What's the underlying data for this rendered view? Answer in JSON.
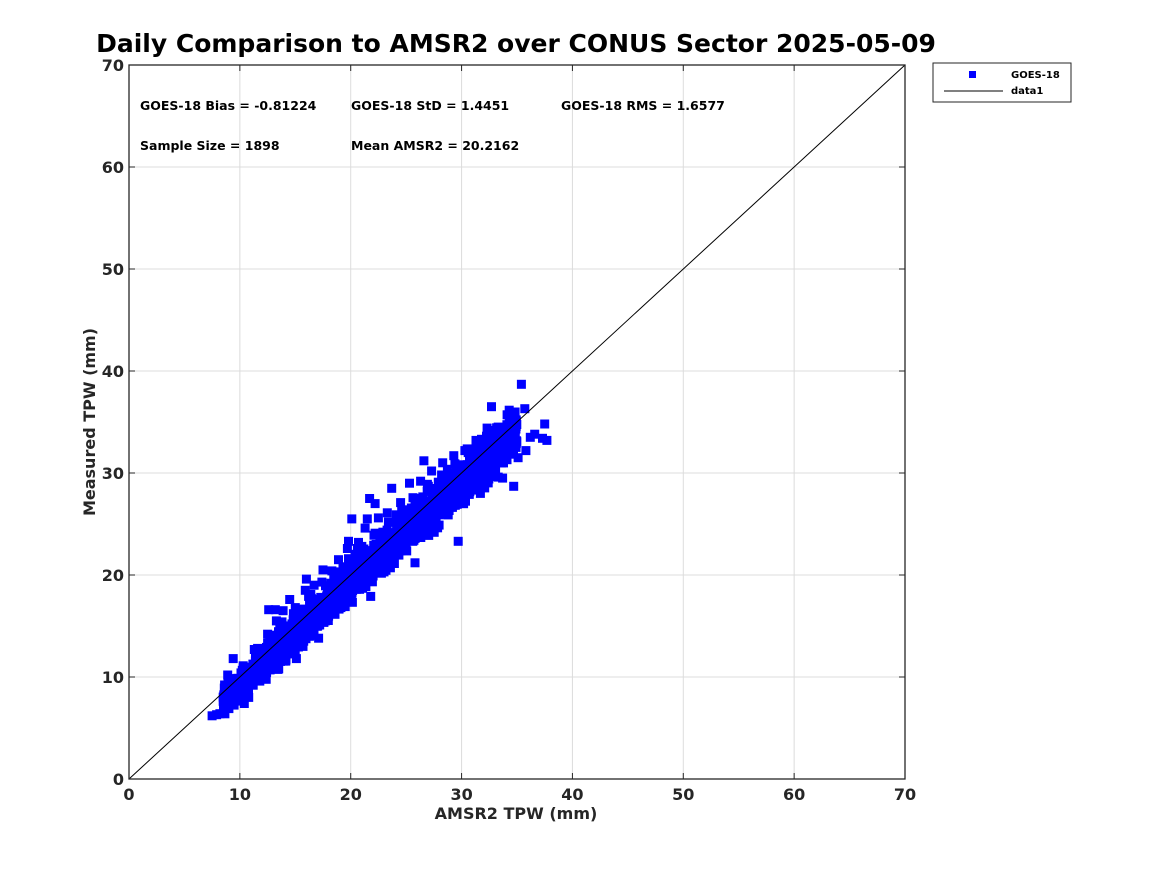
{
  "chart_data": {
    "type": "scatter",
    "title": "Daily Comparison to AMSR2 over CONUS Sector 2025-05-09",
    "xlabel": "AMSR2 TPW (mm)",
    "ylabel": "Measured TPW (mm)",
    "xlim": [
      0,
      70
    ],
    "ylim": [
      0,
      70
    ],
    "xticks": [
      "0",
      "10",
      "20",
      "30",
      "40",
      "50",
      "60",
      "70"
    ],
    "yticks": [
      "0",
      "10",
      "20",
      "30",
      "40",
      "50",
      "60",
      "70"
    ],
    "grid": true,
    "legend_position": "outside-top-right",
    "stats": {
      "bias": "GOES-18 Bias = -0.81224",
      "std": "GOES-18 StD = 1.4451",
      "rms": "GOES-18 RMS = 1.6577",
      "sample_size": "Sample Size = 1898",
      "mean": "Mean AMSR2 = 20.2162"
    },
    "series": [
      {
        "name": "GOES-18",
        "kind": "scatter",
        "color": "#0000ff",
        "marker": "square",
        "n_points": 1898,
        "points": [
          [
            7.5,
            6.2
          ],
          [
            7.9,
            6.3
          ],
          [
            8.2,
            6.4
          ],
          [
            8.6,
            6.7
          ],
          [
            8.9,
            7.2
          ],
          [
            9.2,
            7.6
          ],
          [
            8.9,
            10.2
          ],
          [
            9.0,
            9.8
          ],
          [
            9.4,
            11.8
          ],
          [
            9.6,
            8.3
          ],
          [
            9.8,
            7.9
          ],
          [
            10.0,
            8.6
          ],
          [
            10.2,
            9.1
          ],
          [
            10.4,
            7.4
          ],
          [
            10.6,
            9.9
          ],
          [
            10.8,
            8.0
          ],
          [
            10.3,
            11.1
          ],
          [
            10.9,
            10.4
          ],
          [
            11.2,
            9.2
          ],
          [
            11.4,
            10.8
          ],
          [
            11.6,
            12.8
          ],
          [
            11.8,
            9.6
          ],
          [
            12.0,
            11.5
          ],
          [
            12.2,
            10.1
          ],
          [
            12.3,
            12.4
          ],
          [
            12.5,
            13.3
          ],
          [
            12.7,
            11.0
          ],
          [
            12.9,
            14.1
          ],
          [
            12.6,
            16.6
          ],
          [
            13.1,
            12.3
          ],
          [
            13.3,
            15.5
          ],
          [
            13.5,
            10.8
          ],
          [
            13.7,
            13.6
          ],
          [
            13.9,
            16.5
          ],
          [
            14.1,
            12.5
          ],
          [
            14.3,
            14.5
          ],
          [
            14.5,
            17.6
          ],
          [
            14.7,
            13.2
          ],
          [
            14.9,
            15.6
          ],
          [
            15.1,
            11.8
          ],
          [
            15.3,
            14.2
          ],
          [
            15.5,
            16.5
          ],
          [
            15.7,
            13.0
          ],
          [
            15.9,
            18.5
          ],
          [
            16.1,
            15.2
          ],
          [
            16.3,
            17.1
          ],
          [
            16.5,
            14.1
          ],
          [
            16.7,
            19.0
          ],
          [
            16.9,
            16.3
          ],
          [
            17.1,
            13.8
          ],
          [
            17.3,
            17.8
          ],
          [
            17.5,
            20.5
          ],
          [
            17.7,
            15.5
          ],
          [
            17.9,
            18.6
          ],
          [
            18.1,
            16.8
          ],
          [
            18.3,
            20.4
          ],
          [
            18.5,
            17.6
          ],
          [
            18.7,
            19.4
          ],
          [
            18.9,
            21.5
          ],
          [
            19.1,
            18.2
          ],
          [
            19.3,
            20.8
          ],
          [
            19.5,
            16.9
          ],
          [
            19.7,
            22.6
          ],
          [
            19.9,
            19.5
          ],
          [
            20.1,
            25.5
          ],
          [
            20.3,
            21.2
          ],
          [
            20.5,
            18.6
          ],
          [
            20.7,
            23.2
          ],
          [
            20.9,
            20.0
          ],
          [
            21.1,
            22.1
          ],
          [
            21.3,
            24.6
          ],
          [
            21.5,
            19.8
          ],
          [
            21.7,
            27.5
          ],
          [
            21.9,
            21.8
          ],
          [
            22.1,
            23.9
          ],
          [
            22.3,
            20.6
          ],
          [
            22.5,
            25.6
          ],
          [
            22.7,
            22.5
          ],
          [
            22.9,
            24.2
          ],
          [
            23.1,
            21.0
          ],
          [
            23.3,
            26.1
          ],
          [
            23.5,
            23.5
          ],
          [
            23.7,
            28.5
          ],
          [
            23.9,
            22.0
          ],
          [
            24.1,
            25.9
          ],
          [
            24.3,
            24.2
          ],
          [
            24.5,
            27.1
          ],
          [
            24.7,
            22.9
          ],
          [
            24.9,
            26.1
          ],
          [
            25.1,
            24.8
          ],
          [
            25.3,
            29.0
          ],
          [
            25.5,
            25.6
          ],
          [
            25.7,
            23.4
          ],
          [
            25.9,
            27.5
          ],
          [
            26.1,
            25.0
          ],
          [
            26.3,
            29.2
          ],
          [
            26.5,
            26.6
          ],
          [
            26.7,
            24.0
          ],
          [
            26.9,
            28.2
          ],
          [
            27.1,
            25.9
          ],
          [
            27.3,
            30.2
          ],
          [
            27.5,
            27.0
          ],
          [
            27.7,
            25.2
          ],
          [
            27.9,
            29.1
          ],
          [
            28.1,
            26.5
          ],
          [
            28.3,
            31.0
          ],
          [
            28.5,
            28.0
          ],
          [
            28.7,
            26.2
          ],
          [
            28.9,
            30.0
          ],
          [
            29.1,
            27.6
          ],
          [
            29.3,
            31.7
          ],
          [
            29.5,
            28.9
          ],
          [
            29.7,
            23.3
          ],
          [
            29.9,
            30.6
          ],
          [
            30.1,
            28.6
          ],
          [
            30.3,
            32.2
          ],
          [
            30.5,
            29.6
          ],
          [
            30.7,
            27.9
          ],
          [
            30.9,
            31.4
          ],
          [
            31.1,
            30.0
          ],
          [
            31.3,
            33.2
          ],
          [
            31.5,
            30.9
          ],
          [
            31.7,
            28.0
          ],
          [
            31.9,
            32.6
          ],
          [
            32.1,
            30.5
          ],
          [
            32.3,
            34.4
          ],
          [
            32.5,
            31.6
          ],
          [
            32.7,
            36.5
          ],
          [
            32.9,
            33.1
          ],
          [
            33.1,
            31.0
          ],
          [
            33.3,
            34.5
          ],
          [
            33.5,
            32.3
          ],
          [
            33.7,
            29.5
          ],
          [
            33.9,
            33.8
          ],
          [
            34.1,
            31.3
          ],
          [
            34.3,
            35.0
          ],
          [
            34.5,
            32.8
          ],
          [
            34.7,
            28.7
          ],
          [
            34.9,
            34.3
          ],
          [
            35.1,
            31.5
          ],
          [
            35.4,
            38.7
          ],
          [
            35.7,
            36.3
          ],
          [
            36.2,
            33.5
          ],
          [
            36.6,
            33.8
          ],
          [
            37.3,
            33.4
          ],
          [
            37.7,
            33.2
          ],
          [
            37.5,
            34.8
          ],
          [
            35.8,
            32.2
          ],
          [
            13.2,
            16.6
          ],
          [
            16.4,
            18.1
          ],
          [
            16.0,
            19.6
          ],
          [
            19.8,
            23.3
          ],
          [
            21.5,
            25.5
          ],
          [
            22.2,
            27.0
          ],
          [
            26.6,
            31.2
          ],
          [
            28.8,
            29.2
          ],
          [
            27.4,
            24.6
          ],
          [
            25.8,
            21.2
          ],
          [
            24.4,
            22.8
          ],
          [
            23.0,
            20.3
          ],
          [
            22.3,
            23.0
          ],
          [
            21.8,
            17.9
          ],
          [
            20.6,
            22.6
          ],
          [
            19.4,
            19.9
          ],
          [
            18.2,
            19.2
          ],
          [
            17.0,
            16.9
          ],
          [
            15.6,
            15.8
          ],
          [
            14.4,
            15.0
          ],
          [
            13.6,
            14.7
          ],
          [
            12.4,
            12.9
          ],
          [
            11.5,
            11.8
          ],
          [
            10.7,
            10.9
          ],
          [
            10.1,
            10.4
          ],
          [
            9.5,
            9.7
          ],
          [
            12.8,
            13.0
          ],
          [
            14.0,
            14.3
          ],
          [
            15.2,
            15.4
          ],
          [
            16.6,
            16.9
          ],
          [
            17.6,
            17.6
          ],
          [
            18.8,
            18.9
          ],
          [
            20.0,
            20.1
          ],
          [
            21.2,
            21.2
          ],
          [
            22.4,
            22.5
          ],
          [
            23.6,
            23.4
          ],
          [
            24.8,
            24.7
          ],
          [
            26.0,
            25.7
          ],
          [
            27.2,
            26.9
          ],
          [
            28.4,
            28.0
          ],
          [
            29.6,
            29.0
          ],
          [
            30.8,
            30.1
          ],
          [
            31.8,
            31.3
          ],
          [
            32.8,
            32.3
          ],
          [
            33.8,
            33.1
          ],
          [
            34.6,
            33.5
          ],
          [
            11.0,
            10.0
          ],
          [
            12.1,
            10.6
          ],
          [
            13.4,
            11.6
          ],
          [
            14.6,
            12.7
          ],
          [
            15.8,
            13.8
          ],
          [
            17.2,
            15.1
          ],
          [
            18.4,
            16.2
          ],
          [
            19.6,
            17.4
          ],
          [
            20.8,
            18.6
          ],
          [
            22.0,
            19.9
          ],
          [
            23.2,
            21.1
          ],
          [
            24.6,
            22.4
          ],
          [
            25.6,
            23.3
          ],
          [
            26.8,
            24.6
          ],
          [
            28.0,
            25.9
          ],
          [
            29.2,
            26.8
          ],
          [
            30.4,
            28.1
          ],
          [
            31.6,
            29.2
          ],
          [
            32.6,
            30.2
          ],
          [
            11.3,
            12.7
          ],
          [
            12.5,
            14.2
          ],
          [
            13.8,
            15.4
          ],
          [
            15.0,
            16.8
          ],
          [
            16.2,
            17.9
          ],
          [
            17.4,
            19.3
          ],
          [
            18.6,
            20.3
          ],
          [
            19.8,
            21.6
          ],
          [
            21.0,
            22.8
          ],
          [
            22.2,
            24.1
          ],
          [
            23.4,
            25.2
          ],
          [
            24.6,
            26.3
          ],
          [
            25.8,
            27.4
          ],
          [
            27.0,
            28.7
          ],
          [
            28.2,
            29.8
          ],
          [
            29.4,
            30.9
          ],
          [
            30.6,
            32.0
          ],
          [
            31.8,
            33.3
          ],
          [
            32.4,
            34.0
          ],
          [
            33.6,
            34.2
          ]
        ]
      },
      {
        "name": "data1",
        "kind": "line",
        "color": "#000000",
        "x": [
          0,
          70
        ],
        "y": [
          0,
          70
        ]
      }
    ]
  }
}
